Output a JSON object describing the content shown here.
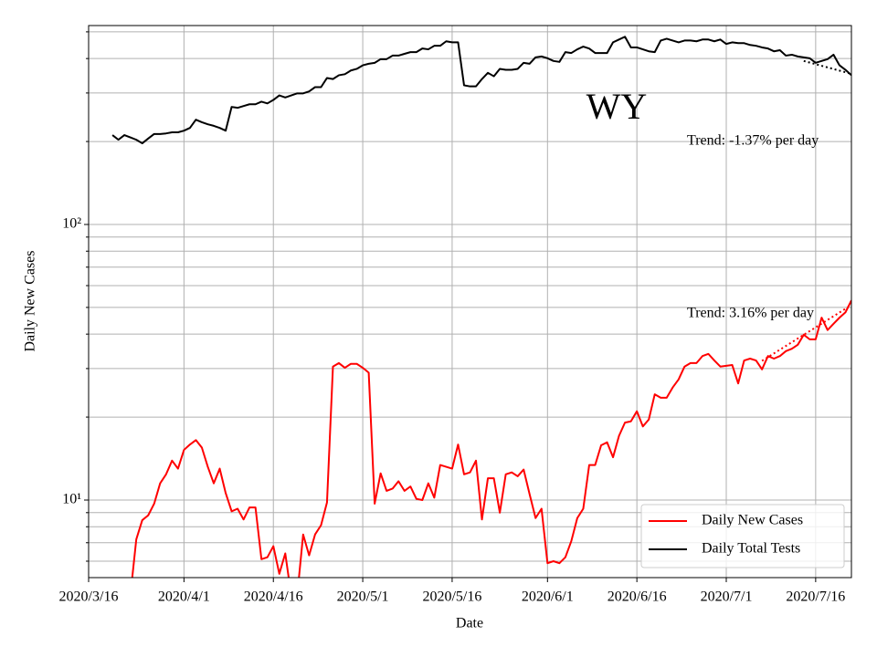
{
  "chart_data": {
    "type": "line",
    "title": "WY",
    "xlabel": "Date",
    "ylabel": "Daily New Cases",
    "log_y": true,
    "grid": true,
    "legend_loc": "lower right",
    "xlim": [
      "2020-03-16",
      "2020-07-22"
    ],
    "ylim": [
      5.23,
      527
    ],
    "xticks": [
      {
        "value": "2020-03-16",
        "label": "2020/3/16"
      },
      {
        "value": "2020-04-01",
        "label": "2020/4/1"
      },
      {
        "value": "2020-04-16",
        "label": "2020/4/16"
      },
      {
        "value": "2020-05-01",
        "label": "2020/5/1"
      },
      {
        "value": "2020-05-16",
        "label": "2020/5/16"
      },
      {
        "value": "2020-06-01",
        "label": "2020/6/1"
      },
      {
        "value": "2020-06-16",
        "label": "2020/6/16"
      },
      {
        "value": "2020-07-01",
        "label": "2020/7/1"
      },
      {
        "value": "2020-07-16",
        "label": "2020/7/16"
      }
    ],
    "yticks": [
      {
        "value": 10,
        "label": "10¹"
      },
      {
        "value": 100,
        "label": "10²"
      }
    ],
    "yticks_minor": [
      6,
      7,
      8,
      9,
      20,
      30,
      40,
      50,
      60,
      70,
      80,
      90,
      200,
      300,
      400,
      500
    ],
    "x": [
      "2020-03-20",
      "2020-03-21",
      "2020-03-22",
      "2020-03-23",
      "2020-03-24",
      "2020-03-25",
      "2020-03-26",
      "2020-03-27",
      "2020-03-28",
      "2020-03-29",
      "2020-03-30",
      "2020-03-31",
      "2020-04-01",
      "2020-04-02",
      "2020-04-03",
      "2020-04-04",
      "2020-04-05",
      "2020-04-06",
      "2020-04-07",
      "2020-04-08",
      "2020-04-09",
      "2020-04-10",
      "2020-04-11",
      "2020-04-12",
      "2020-04-13",
      "2020-04-14",
      "2020-04-15",
      "2020-04-16",
      "2020-04-17",
      "2020-04-18",
      "2020-04-19",
      "2020-04-20",
      "2020-04-21",
      "2020-04-22",
      "2020-04-23",
      "2020-04-24",
      "2020-04-25",
      "2020-04-26",
      "2020-04-27",
      "2020-04-28",
      "2020-04-29",
      "2020-04-30",
      "2020-05-01",
      "2020-05-02",
      "2020-05-03",
      "2020-05-04",
      "2020-05-05",
      "2020-05-06",
      "2020-05-07",
      "2020-05-08",
      "2020-05-09",
      "2020-05-10",
      "2020-05-11",
      "2020-05-12",
      "2020-05-13",
      "2020-05-14",
      "2020-05-15",
      "2020-05-16",
      "2020-05-17",
      "2020-05-18",
      "2020-05-19",
      "2020-05-20",
      "2020-05-21",
      "2020-05-22",
      "2020-05-23",
      "2020-05-24",
      "2020-05-25",
      "2020-05-26",
      "2020-05-27",
      "2020-05-28",
      "2020-05-29",
      "2020-05-30",
      "2020-05-31",
      "2020-06-01",
      "2020-06-02",
      "2020-06-03",
      "2020-06-04",
      "2020-06-05",
      "2020-06-06",
      "2020-06-07",
      "2020-06-08",
      "2020-06-09",
      "2020-06-10",
      "2020-06-11",
      "2020-06-12",
      "2020-06-13",
      "2020-06-14",
      "2020-06-15",
      "2020-06-16",
      "2020-06-17",
      "2020-06-18",
      "2020-06-19",
      "2020-06-20",
      "2020-06-21",
      "2020-06-22",
      "2020-06-23",
      "2020-06-24",
      "2020-06-25",
      "2020-06-26",
      "2020-06-27",
      "2020-06-28",
      "2020-06-29",
      "2020-06-30",
      "2020-07-01",
      "2020-07-02",
      "2020-07-03",
      "2020-07-04",
      "2020-07-05",
      "2020-07-06",
      "2020-07-07",
      "2020-07-08",
      "2020-07-09",
      "2020-07-10",
      "2020-07-11",
      "2020-07-12",
      "2020-07-13",
      "2020-07-14",
      "2020-07-15",
      "2020-07-16",
      "2020-07-17",
      "2020-07-18",
      "2020-07-19",
      "2020-07-20",
      "2020-07-21",
      "2020-07-22"
    ],
    "series": [
      {
        "name": "Daily New Cases",
        "color": "#ff0000",
        "values": [
          null,
          null,
          null,
          4.5,
          7.2,
          8.45,
          8.8,
          9.7,
          11.5,
          12.4,
          13.9,
          13.0,
          15.2,
          15.9,
          16.5,
          15.5,
          13.2,
          11.5,
          13.0,
          10.6,
          9.1,
          9.3,
          8.5,
          9.4,
          9.4,
          6.1,
          6.2,
          6.8,
          5.4,
          6.4,
          4.5,
          4.5,
          7.5,
          6.3,
          7.5,
          8.1,
          9.8,
          30.5,
          31.4,
          30.2,
          31.2,
          31.2,
          30.2,
          29,
          9.7,
          12.5,
          10.8,
          11.0,
          11.7,
          10.8,
          11.2,
          10.1,
          10,
          11.5,
          10.2,
          13.4,
          13.2,
          13.0,
          15.9,
          12.4,
          12.6,
          13.9,
          8.5,
          12.0,
          12.0,
          9.0,
          12.4,
          12.6,
          12.2,
          12.9,
          10.5,
          8.6,
          9.3,
          5.9,
          6.0,
          5.9,
          6.2,
          7.1,
          8.6,
          9.3,
          13.4,
          13.4,
          15.8,
          16.2,
          14.3,
          17.1,
          19.1,
          19.3,
          21.0,
          18.5,
          19.6,
          24.2,
          23.5,
          23.5,
          25.6,
          27.4,
          30.5,
          31.4,
          31.4,
          33.3,
          33.9,
          32.1,
          30.5,
          30.7,
          30.9,
          26.5,
          32.1,
          32.6,
          32.1,
          29.8,
          33.3,
          32.6,
          33.3,
          34.7,
          35.4,
          36.6,
          39.8,
          38.3,
          38.3,
          45.9,
          41.4,
          43.6,
          45.9,
          48.0,
          53
        ]
      },
      {
        "name": "Daily Total Tests",
        "color": "#000000",
        "values": [
          211,
          203,
          211,
          207,
          203,
          197,
          205,
          213,
          213,
          214,
          216,
          216,
          219,
          224,
          240,
          235,
          231,
          228,
          224,
          219,
          267,
          265,
          269,
          273,
          273,
          279,
          275,
          283,
          294,
          289,
          294,
          299,
          299,
          304,
          315,
          315,
          340,
          337,
          348,
          351,
          362,
          367,
          378,
          383,
          386,
          398,
          398,
          410,
          410,
          416,
          422,
          422,
          435,
          432,
          445,
          445,
          462,
          458,
          458,
          320,
          317,
          317,
          337,
          355,
          345,
          367,
          364,
          364,
          367,
          386,
          383,
          404,
          407,
          401,
          392,
          389,
          422,
          419,
          432,
          442,
          435,
          419,
          419,
          419,
          458,
          469,
          480,
          439,
          439,
          432,
          425,
          422,
          465,
          472,
          465,
          458,
          465,
          465,
          462,
          469,
          469,
          462,
          469,
          452,
          458,
          455,
          455,
          448,
          445,
          439,
          435,
          425,
          429,
          410,
          413,
          407,
          404,
          401,
          386,
          392,
          398,
          413,
          378,
          364,
          348
        ]
      }
    ],
    "trends": [
      {
        "color": "#ff0000",
        "linestyle": "dotted",
        "x": [
          "2020-07-07",
          "2020-07-22"
        ],
        "values": [
          32,
          51
        ]
      },
      {
        "color": "#000000",
        "linestyle": "dotted",
        "x": [
          "2020-07-14",
          "2020-07-22"
        ],
        "values": [
          392,
          352
        ]
      }
    ],
    "annotations": [
      "Trend: -1.37% per day",
      "Trend: 3.16% per day"
    ]
  }
}
